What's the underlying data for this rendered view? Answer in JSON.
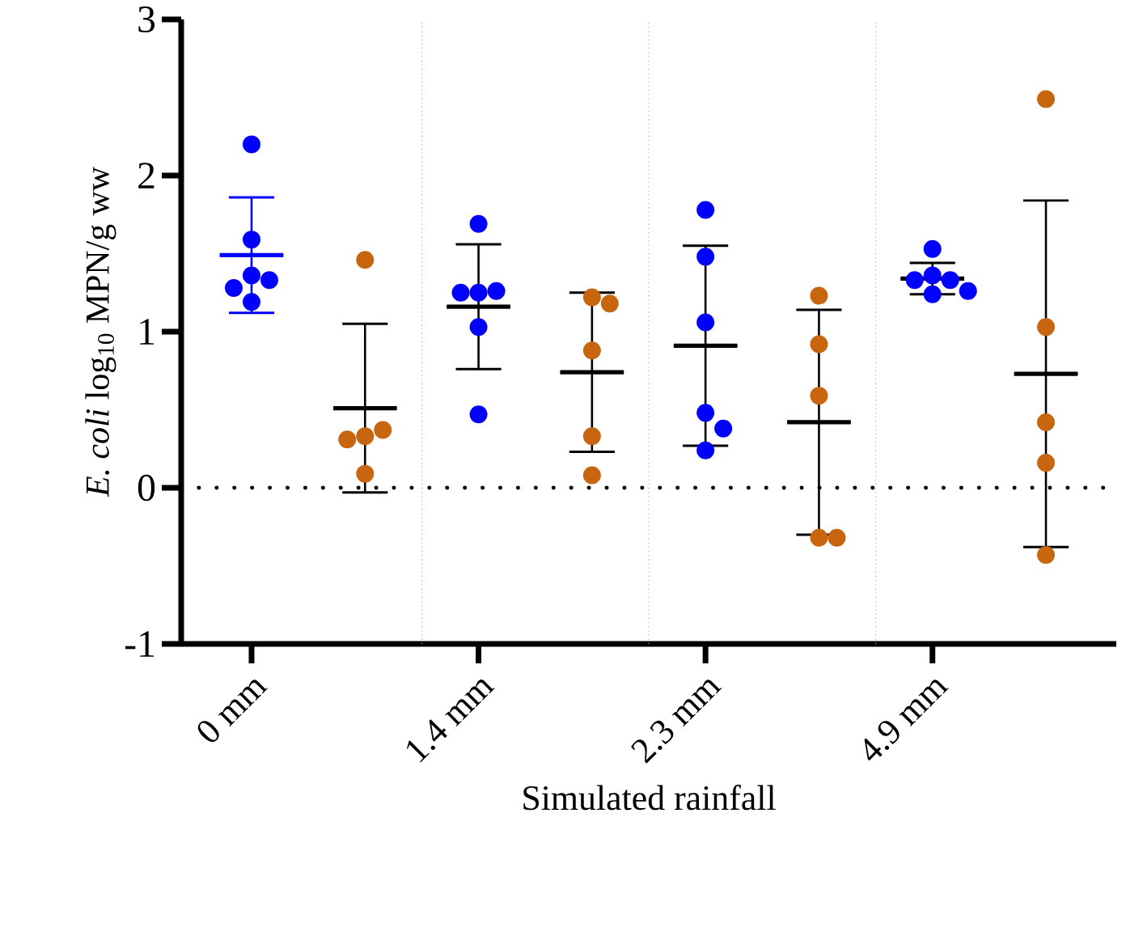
{
  "chart_data": {
    "type": "scatter",
    "xlabel": "Simulated rainfall",
    "ylabel": "*E. coli* log$_{10}$ MPN/g ww",
    "categories": [
      "0 mm",
      null,
      "1.4 mm",
      null,
      "2.3 mm",
      null,
      "4.9 mm",
      null
    ],
    "ylim": [
      -1,
      3
    ],
    "yticks": [
      -1,
      0,
      1,
      2,
      3
    ],
    "marker": "circle",
    "series": [
      {
        "type": "box",
        "color": "#0000ff",
        "boxes": [
          {
            "low": 1.12,
            "q1": 1.49,
            "median": 1.49,
            "q3": 1.49,
            "high": 1.86
          },
          null,
          null,
          null,
          null,
          null,
          null,
          null
        ]
      },
      {
        "type": "box",
        "color": "#000000",
        "boxes": [
          null,
          {
            "low": -0.03,
            "q1": 0.51,
            "median": 0.51,
            "q3": 0.51,
            "high": 1.05
          },
          {
            "low": 0.76,
            "q1": 1.16,
            "median": 1.16,
            "q3": 1.16,
            "high": 1.56
          },
          {
            "low": 0.23,
            "q1": 0.74,
            "median": 0.74,
            "q3": 0.74,
            "high": 1.25
          },
          {
            "low": 0.27,
            "q1": 0.91,
            "median": 0.91,
            "q3": 0.91,
            "high": 1.55
          },
          {
            "low": -0.3,
            "q1": 0.42,
            "median": 0.42,
            "q3": 0.42,
            "high": 1.14
          },
          {
            "low": 1.24,
            "q1": 1.34,
            "median": 1.34,
            "q3": 1.34,
            "high": 1.44
          },
          {
            "low": -0.38,
            "q1": 0.73,
            "median": 0.73,
            "q3": 0.73,
            "high": 1.84
          }
        ]
      },
      {
        "color": "#0000ff",
        "values": [
          2.2,
          null,
          1.69,
          null,
          1.78,
          null,
          1.53,
          null
        ]
      },
      {
        "color": "#0000ff",
        "values": [
          1.59,
          null,
          1.25,
          null,
          1.48,
          null,
          1.36,
          null
        ]
      },
      {
        "color": "#0000ff",
        "values": [
          1.36,
          null,
          1.26,
          null,
          1.06,
          null,
          1.33,
          null
        ]
      },
      {
        "color": "#0000ff",
        "values": [
          1.19,
          null,
          1.25,
          null,
          0.48,
          null,
          1.33,
          null
        ]
      },
      {
        "color": "#0000ff",
        "values": [
          null,
          null,
          1.03,
          null,
          0.38,
          null,
          1.24,
          null
        ]
      },
      {
        "color": "#0000ff",
        "values": [
          null,
          null,
          null,
          null,
          0.24,
          null,
          1.26,
          null
        ]
      },
      {
        "color": "#0000ff",
        "values": [
          1.33,
          null,
          0.47,
          null,
          null,
          null,
          null,
          null
        ]
      },
      {
        "color": "#0000ff",
        "values": [
          1.28,
          null,
          null,
          null,
          null,
          null,
          null,
          null
        ]
      },
      {
        "color": "#c8650f",
        "values": [
          null,
          1.46,
          null,
          1.22,
          null,
          1.23,
          null,
          2.49
        ]
      },
      {
        "color": "#c8650f",
        "values": [
          null,
          null,
          null,
          1.18,
          null,
          0.92,
          null,
          1.03
        ]
      },
      {
        "color": "#c8650f",
        "values": [
          null,
          null,
          null,
          0.88,
          null,
          0.59,
          null,
          0.42
        ]
      },
      {
        "color": "#c8650f",
        "values": [
          null,
          null,
          null,
          null,
          null,
          null,
          null,
          0.16
        ]
      },
      {
        "color": "#c8650f",
        "values": [
          null,
          0.33,
          null,
          0.33,
          null,
          -0.32,
          null,
          -0.43
        ]
      },
      {
        "color": "#c8650f",
        "values": [
          null,
          0.37,
          null,
          0.08,
          null,
          -0.32,
          null,
          null
        ]
      },
      {
        "color": "#c8650f",
        "values": [
          null,
          0.31,
          null,
          null,
          null,
          null,
          null,
          null
        ]
      },
      {
        "color": "#c8650f",
        "values": [
          null,
          0.09,
          null,
          null,
          null,
          null,
          null,
          null
        ]
      }
    ],
    "ref_lines": [
      {
        "axis": "y",
        "value": 0,
        "color": "#000000",
        "line_style": "dotted"
      }
    ]
  }
}
